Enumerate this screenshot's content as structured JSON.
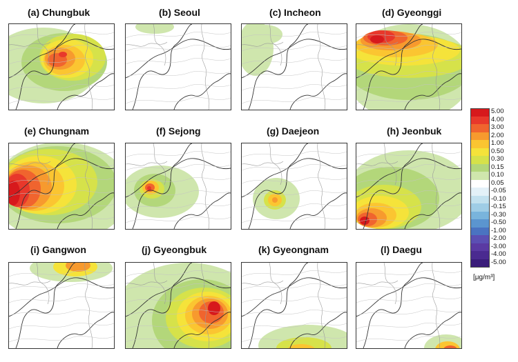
{
  "panels": [
    {
      "id": "a",
      "label": "(a) Chungbuk"
    },
    {
      "id": "b",
      "label": "(b) Seoul"
    },
    {
      "id": "c",
      "label": "(c) Incheon"
    },
    {
      "id": "d",
      "label": "(d) Gyeonggi"
    },
    {
      "id": "e",
      "label": "(e) Chungnam"
    },
    {
      "id": "f",
      "label": "(f) Sejong"
    },
    {
      "id": "g",
      "label": "(g) Daejeon"
    },
    {
      "id": "h",
      "label": "(h) Jeonbuk"
    },
    {
      "id": "i",
      "label": "(i) Gangwon"
    },
    {
      "id": "j",
      "label": "(j) Gyeongbuk"
    },
    {
      "id": "k",
      "label": "(k) Gyeongnam"
    },
    {
      "id": "l",
      "label": "(l) Daegu"
    }
  ],
  "legend": {
    "levels": [
      {
        "label": "5.00",
        "color": "#d7191c"
      },
      {
        "label": "4.00",
        "color": "#e8382b"
      },
      {
        "label": "3.00",
        "color": "#f0642e"
      },
      {
        "label": "2.00",
        "color": "#f79a2e"
      },
      {
        "label": "1.00",
        "color": "#fbc531"
      },
      {
        "label": "0.50",
        "color": "#f5e33a"
      },
      {
        "label": "0.30",
        "color": "#d6e24a"
      },
      {
        "label": "0.15",
        "color": "#b3d77a"
      },
      {
        "label": "0.10",
        "color": "#cfe6ad"
      },
      {
        "label": "0.05",
        "color": "#ffffff"
      },
      {
        "label": "-0.05",
        "color": "#e3f1f8"
      },
      {
        "label": "-0.10",
        "color": "#c2e1ef"
      },
      {
        "label": "-0.15",
        "color": "#9fcde6"
      },
      {
        "label": "-0.30",
        "color": "#79b4dc"
      },
      {
        "label": "-0.50",
        "color": "#5b95cf"
      },
      {
        "label": "-1.00",
        "color": "#4a73c1"
      },
      {
        "label": "-2.00",
        "color": "#5b4fb3"
      },
      {
        "label": "-3.00",
        "color": "#5a3aa3"
      },
      {
        "label": "-4.00",
        "color": "#4a2a90"
      },
      {
        "label": "-5.00",
        "color": "#3a1c7a"
      }
    ],
    "unit": "[μg/m³]"
  }
}
